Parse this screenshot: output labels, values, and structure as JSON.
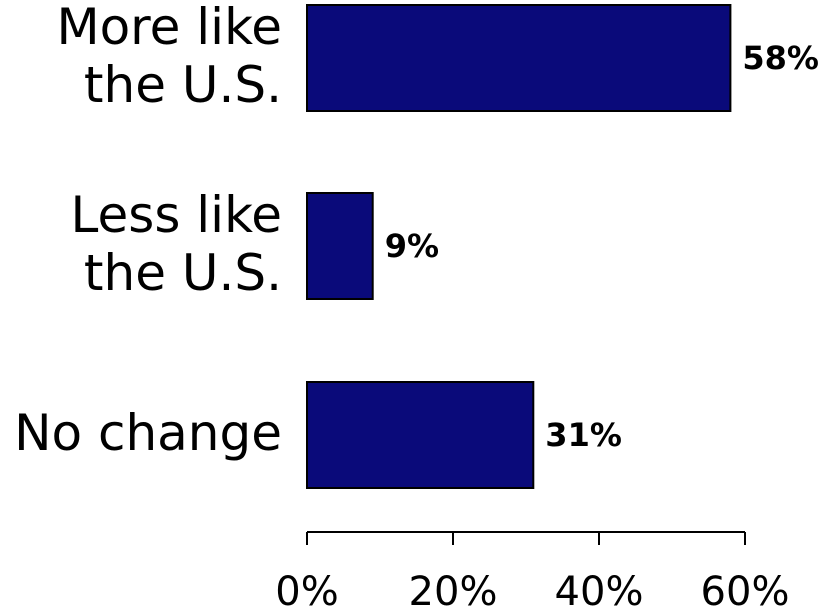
{
  "chart_data": {
    "type": "bar",
    "orientation": "horizontal",
    "categories": [
      [
        "More like",
        "the U.S."
      ],
      [
        "Less like",
        "the U.S."
      ],
      [
        "No change"
      ]
    ],
    "values": [
      58,
      9,
      31
    ],
    "data_labels": [
      "58%",
      "9%",
      "31%"
    ],
    "xlim": [
      0,
      60
    ],
    "xticks": [
      0,
      20,
      40,
      60
    ],
    "xtick_labels": [
      "0%",
      "20%",
      "40%",
      "60%"
    ],
    "title": "",
    "xlabel": "",
    "ylabel": "",
    "grid": false,
    "legend": "none",
    "bar_color": "#0a0a7a",
    "bar_edge_color": "#000000",
    "text_color": "#000000"
  }
}
